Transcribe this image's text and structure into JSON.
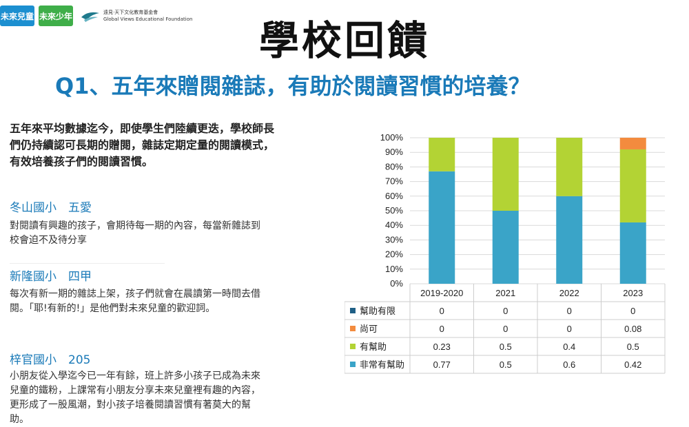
{
  "logos": {
    "logo1": "未來兒童",
    "logo2": "未來少年",
    "foundation_zh": "遠見‧天下文化教育基金會",
    "foundation_en": "Global Views Educational Foundation"
  },
  "title": "學校回饋",
  "question": "Q1、五年來贈閱雜誌，有助於閱讀習慣的培養？",
  "intro": "五年來平均數據迄今，即使學生們陸續更迭，學校師長們仍持續認可長期的贈閱，雜誌定期定量的閱讀模式，有效培養孩子們的閱讀習慣。",
  "schools": [
    {
      "name": "冬山國小　五愛",
      "quote": "對閱讀有興趣的孩子，會期待每一期的內容，每當新雜誌到校會迫不及待分享"
    },
    {
      "name": "新隆國小　四甲",
      "quote": "每次有新一期的雜誌上架，孩子們就會在晨讀第一時間去借閱。「耶!有新的!」是他們對未來兒童的歡迎詞。"
    },
    {
      "name": "梓官國小　205",
      "quote": "小朋友從入學迄今已一年有餘，班上許多小孩子已成為未來兒童的鐵粉，上課常有小朋友分享未來兒童裡有趣的內容，更形成了一股風潮，對小孩子培養閱讀習慣有著莫大的幫助。"
    }
  ],
  "chart_data": {
    "type": "bar",
    "stacked": true,
    "percent": true,
    "categories": [
      "2019-2020",
      "2021",
      "2022",
      "2023"
    ],
    "ylim": [
      0,
      1
    ],
    "yticks": [
      "0%",
      "10%",
      "20%",
      "30%",
      "40%",
      "50%",
      "60%",
      "70%",
      "80%",
      "90%",
      "100%"
    ],
    "grid": true,
    "legend": "table-below",
    "series": [
      {
        "name": "幫助有限",
        "color": "#1f5f86",
        "values": [
          "0",
          "0",
          "0",
          "0"
        ]
      },
      {
        "name": "尚可",
        "color": "#f38b3e",
        "values": [
          "0",
          "0",
          "0",
          "0.08"
        ]
      },
      {
        "name": "有幫助",
        "color": "#b3d334",
        "values": [
          "0.23",
          "0.5",
          "0.4",
          "0.5"
        ]
      },
      {
        "name": "非常有幫助",
        "color": "#3aa4c8",
        "values": [
          "0.77",
          "0.5",
          "0.6",
          "0.42"
        ]
      }
    ]
  }
}
